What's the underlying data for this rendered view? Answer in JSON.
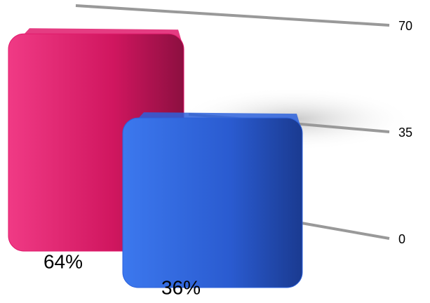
{
  "chart_data": {
    "type": "bar",
    "categories": [
      null,
      null
    ],
    "values": [
      64,
      36
    ],
    "value_labels": [
      "64%",
      "36%"
    ],
    "series_colors": [
      "#e01a6c",
      "#2d62dc"
    ],
    "ylim": [
      0,
      70
    ],
    "yticks": [
      0,
      35,
      70
    ],
    "grid": true
  }
}
